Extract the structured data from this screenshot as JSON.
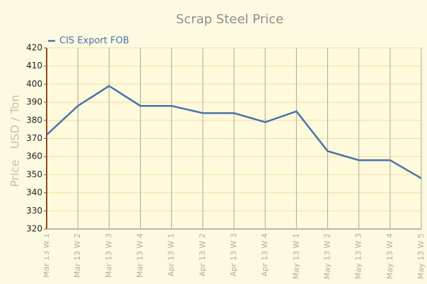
{
  "chart_data": {
    "type": "line",
    "title": "Scrap Steel Price",
    "y_label": "Price   USD / Ton",
    "categories": [
      "Mar 13 W 1",
      "Mar 13 W 2",
      "Mar 13 W 3",
      "Mar 13 W 4",
      "Apr 13 W 1",
      "Apr 13 W 2",
      "Apr 13 W 3",
      "Apr 13 W 4",
      "May 13 W 1",
      "May 13 W 2",
      "May 13 W 3",
      "May 13 W 4",
      "May 13 W 5"
    ],
    "series": [
      {
        "name": "CIS Export FOB",
        "color": "#4a72a8",
        "values": [
          372,
          388,
          399,
          388,
          388,
          384,
          384,
          379,
          385,
          363,
          358,
          358,
          348
        ]
      }
    ],
    "ylim": [
      320,
      420
    ],
    "yticks": [
      320,
      330,
      340,
      350,
      360,
      370,
      380,
      390,
      400,
      410,
      420
    ],
    "grid": true
  }
}
